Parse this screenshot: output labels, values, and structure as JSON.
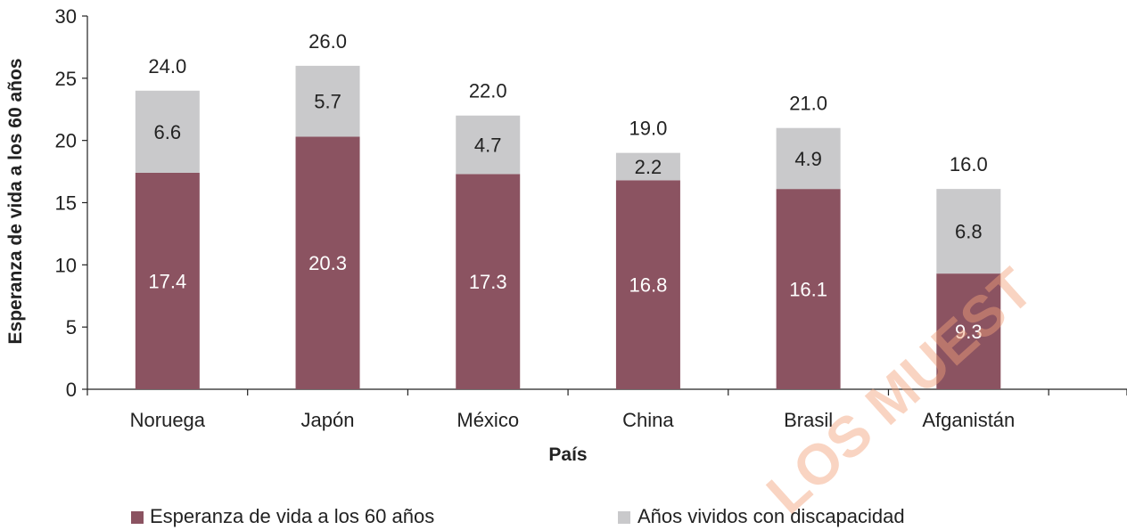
{
  "chart_data": {
    "type": "bar",
    "stacked": true,
    "categories": [
      "Noruega",
      "Japón",
      "México",
      "China",
      "Brasil",
      "Afganistán"
    ],
    "series": [
      {
        "name": "Esperanza de vida a los 60 años",
        "values": [
          17.4,
          20.3,
          17.3,
          16.8,
          16.1,
          9.3
        ],
        "color": "#8b5361",
        "label_color": "#ffffff"
      },
      {
        "name": "Años vividos con discapacidad",
        "values": [
          6.6,
          5.7,
          4.7,
          2.2,
          4.9,
          6.8
        ],
        "color": "#c9c9cb",
        "label_color": "#222222"
      }
    ],
    "totals": [
      "24.0",
      "26.0",
      "22.0",
      "19.0",
      "21.0",
      "16.0"
    ],
    "segment_labels": [
      [
        "17.4",
        "20.3",
        "17.3",
        "16.8",
        "16.1",
        "9.3"
      ],
      [
        "6.6",
        "5.7",
        "4.7",
        "2.2",
        "4.9",
        "6.8"
      ]
    ],
    "title": "",
    "xlabel": "País",
    "ylabel": "Esperanza de vida a los 60 años",
    "ylim": [
      0,
      30
    ],
    "yticks": [
      0,
      5,
      10,
      15,
      20,
      25,
      30
    ],
    "grid": false,
    "legend_position": "bottom"
  },
  "watermark": "LOS MUEST"
}
